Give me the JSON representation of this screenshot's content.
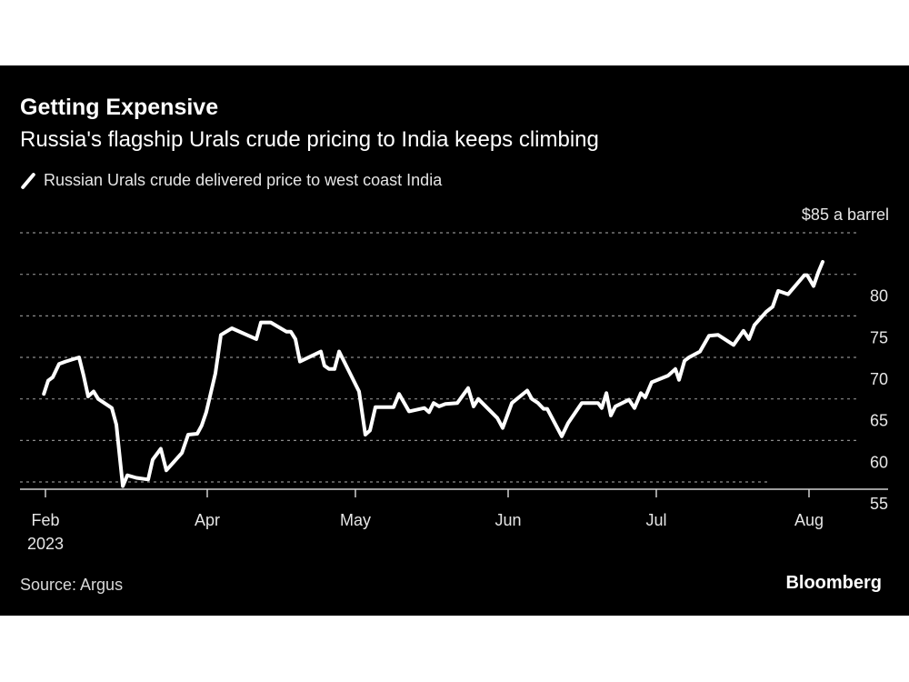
{
  "header": {
    "title": "Getting Expensive",
    "subtitle": "Russia's flagship Urals crude pricing to India keeps climbing"
  },
  "footer": {
    "source": "Source: Argus",
    "brand": "Bloomberg"
  },
  "colors": {
    "background": "#000000",
    "line": "#ffffff",
    "grid": "#8c8c8c",
    "text": "#e6e6e6"
  },
  "chart_data": {
    "type": "line",
    "title": "Getting Expensive",
    "subtitle": "Russia's flagship Urals crude pricing to India keeps climbing",
    "xlabel": "",
    "ylabel": "$ a barrel",
    "unit_label": "$85 a barrel",
    "legend": {
      "position": "top-left",
      "entries": [
        "Russian Urals crude delivered price to west coast India"
      ]
    },
    "grid": true,
    "ylim": [
      54,
      85
    ],
    "yticks": [
      {
        "value": 85,
        "label": "$85 a barrel"
      },
      {
        "value": 80,
        "label": "80"
      },
      {
        "value": 75,
        "label": "75"
      },
      {
        "value": 70,
        "label": "70"
      },
      {
        "value": 65,
        "label": "65"
      },
      {
        "value": 60,
        "label": "60"
      },
      {
        "value": 55,
        "label": "55"
      }
    ],
    "x_note": "x is tick-index position: 0=Feb 2023, 1=Apr, 2=May, 3=Jun, 4=Jul, 5=Aug",
    "xlim": [
      -0.16,
      5.5
    ],
    "xticks": [
      {
        "pos": 0,
        "label": "Feb",
        "sublabel": "2023"
      },
      {
        "pos": 1,
        "label": "Apr",
        "sublabel": ""
      },
      {
        "pos": 2,
        "label": "May",
        "sublabel": ""
      },
      {
        "pos": 3,
        "label": "Jun",
        "sublabel": ""
      },
      {
        "pos": 4,
        "label": "Jul",
        "sublabel": ""
      },
      {
        "pos": 5,
        "label": "Aug",
        "sublabel": ""
      }
    ],
    "series": [
      {
        "name": "Russian Urals crude delivered price to west coast India",
        "points": [
          [
            -0.01,
            65.6
          ],
          [
            0.017,
            67.2
          ],
          [
            0.045,
            67.6
          ],
          [
            0.084,
            69.2
          ],
          [
            0.124,
            69.5
          ],
          [
            0.208,
            70.0
          ],
          [
            0.236,
            67.8
          ],
          [
            0.264,
            65.3
          ],
          [
            0.298,
            65.9
          ],
          [
            0.326,
            65.0
          ],
          [
            0.41,
            63.9
          ],
          [
            0.438,
            61.9
          ],
          [
            0.478,
            54.5
          ],
          [
            0.506,
            55.8
          ],
          [
            0.562,
            55.5
          ],
          [
            0.635,
            55.3
          ],
          [
            0.663,
            57.7
          ],
          [
            0.713,
            59.0
          ],
          [
            0.747,
            56.4
          ],
          [
            0.843,
            58.5
          ],
          [
            0.882,
            60.7
          ],
          [
            0.938,
            60.8
          ],
          [
            0.966,
            61.8
          ],
          [
            0.994,
            63.4
          ],
          [
            1.055,
            68.1
          ],
          [
            1.092,
            72.7
          ],
          [
            1.166,
            73.5
          ],
          [
            1.331,
            72.2
          ],
          [
            1.362,
            74.2
          ],
          [
            1.429,
            74.2
          ],
          [
            1.534,
            73.1
          ],
          [
            1.564,
            73.1
          ],
          [
            1.595,
            72.2
          ],
          [
            1.626,
            69.5
          ],
          [
            1.767,
            70.7
          ],
          [
            1.791,
            69.0
          ],
          [
            1.822,
            68.6
          ],
          [
            1.859,
            68.6
          ],
          [
            1.89,
            70.7
          ],
          [
            2.024,
            65.9
          ],
          [
            2.065,
            60.7
          ],
          [
            2.095,
            61.2
          ],
          [
            2.131,
            64.0
          ],
          [
            2.25,
            64.0
          ],
          [
            2.286,
            65.6
          ],
          [
            2.351,
            63.5
          ],
          [
            2.452,
            63.9
          ],
          [
            2.482,
            63.4
          ],
          [
            2.512,
            64.5
          ],
          [
            2.548,
            64.1
          ],
          [
            2.589,
            64.4
          ],
          [
            2.667,
            64.5
          ],
          [
            2.738,
            66.3
          ],
          [
            2.774,
            64.1
          ],
          [
            2.804,
            65.0
          ],
          [
            2.929,
            62.7
          ],
          [
            2.964,
            61.5
          ],
          [
            3.025,
            64.5
          ],
          [
            3.129,
            66.0
          ],
          [
            3.16,
            65.0
          ],
          [
            3.202,
            64.5
          ],
          [
            3.239,
            63.8
          ],
          [
            3.264,
            63.8
          ],
          [
            3.362,
            60.5
          ],
          [
            3.405,
            62.1
          ],
          [
            3.497,
            64.5
          ],
          [
            3.607,
            64.5
          ],
          [
            3.632,
            63.9
          ],
          [
            3.663,
            65.7
          ],
          [
            3.693,
            63.0
          ],
          [
            3.724,
            64.1
          ],
          [
            3.816,
            64.9
          ],
          [
            3.853,
            63.9
          ],
          [
            3.896,
            65.7
          ],
          [
            3.926,
            65.2
          ],
          [
            3.969,
            67.0
          ],
          [
            4.077,
            67.8
          ],
          [
            4.125,
            68.6
          ],
          [
            4.149,
            67.3
          ],
          [
            4.185,
            69.6
          ],
          [
            4.214,
            70.0
          ],
          [
            4.286,
            70.7
          ],
          [
            4.345,
            72.6
          ],
          [
            4.405,
            72.7
          ],
          [
            4.506,
            71.5
          ],
          [
            4.571,
            73.2
          ],
          [
            4.607,
            72.2
          ],
          [
            4.643,
            73.9
          ],
          [
            4.72,
            75.5
          ],
          [
            4.762,
            76.1
          ],
          [
            4.798,
            78.0
          ],
          [
            4.863,
            77.6
          ],
          [
            4.97,
            79.9
          ],
          [
            4.988,
            79.9
          ],
          [
            5.03,
            78.6
          ],
          [
            5.06,
            80.2
          ],
          [
            5.089,
            81.5
          ]
        ]
      }
    ]
  }
}
